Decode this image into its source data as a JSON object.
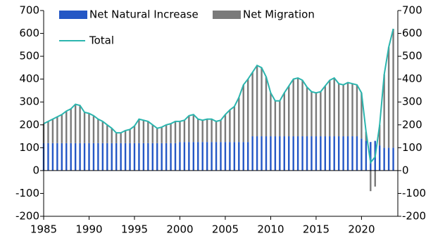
{
  "chart_data": {
    "type": "bar",
    "stacked": true,
    "x": [
      1985,
      1985.5,
      1986,
      1986.5,
      1987,
      1987.5,
      1988,
      1988.5,
      1989,
      1989.5,
      1990,
      1990.5,
      1991,
      1991.5,
      1992,
      1992.5,
      1993,
      1993.5,
      1994,
      1994.5,
      1995,
      1995.5,
      1996,
      1996.5,
      1997,
      1997.5,
      1998,
      1998.5,
      1999,
      1999.5,
      2000,
      2000.5,
      2001,
      2001.5,
      2002,
      2002.5,
      2003,
      2003.5,
      2004,
      2004.5,
      2005,
      2005.5,
      2006,
      2006.5,
      2007,
      2007.5,
      2008,
      2008.5,
      2009,
      2009.5,
      2010,
      2010.5,
      2011,
      2011.5,
      2012,
      2012.5,
      2013,
      2013.5,
      2014,
      2014.5,
      2015,
      2015.5,
      2016,
      2016.5,
      2017,
      2017.5,
      2018,
      2018.5,
      2019,
      2019.5,
      2020,
      2020.5,
      2021,
      2021.5,
      2022,
      2022.5,
      2023,
      2023.5
    ],
    "series": [
      {
        "name": "Net Natural Increase",
        "color": "#2457c5",
        "values": [
          120,
          120,
          120,
          120,
          120,
          120,
          120,
          120,
          120,
          120,
          120,
          120,
          120,
          120,
          120,
          120,
          120,
          120,
          120,
          120,
          120,
          120,
          120,
          120,
          120,
          120,
          120,
          120,
          120,
          120,
          125,
          125,
          125,
          125,
          125,
          125,
          125,
          125,
          125,
          125,
          125,
          125,
          125,
          125,
          125,
          125,
          150,
          150,
          150,
          150,
          150,
          150,
          150,
          150,
          150,
          150,
          150,
          150,
          150,
          150,
          150,
          150,
          150,
          150,
          150,
          150,
          150,
          150,
          150,
          150,
          140,
          130,
          125,
          130,
          110,
          100,
          100,
          100
        ]
      },
      {
        "name": "Net Migration",
        "color": "#7a7a7a",
        "values": [
          85,
          95,
          105,
          115,
          125,
          140,
          150,
          170,
          165,
          135,
          130,
          120,
          105,
          95,
          80,
          65,
          45,
          45,
          55,
          60,
          75,
          105,
          100,
          95,
          80,
          65,
          70,
          80,
          85,
          95,
          90,
          95,
          115,
          120,
          100,
          95,
          100,
          100,
          90,
          95,
          120,
          140,
          155,
          195,
          250,
          275,
          280,
          310,
          300,
          260,
          190,
          155,
          155,
          190,
          220,
          250,
          255,
          245,
          215,
          195,
          190,
          195,
          220,
          245,
          255,
          230,
          225,
          235,
          230,
          225,
          200,
          40,
          -90,
          -70,
          90,
          320,
          440,
          520
        ]
      },
      {
        "name": "Total",
        "type": "line",
        "color": "#2bb5ae",
        "values": [
          205,
          215,
          225,
          235,
          245,
          260,
          270,
          290,
          285,
          255,
          250,
          240,
          225,
          215,
          200,
          185,
          165,
          165,
          175,
          180,
          195,
          225,
          220,
          215,
          200,
          185,
          190,
          200,
          205,
          215,
          215,
          220,
          240,
          245,
          225,
          220,
          225,
          225,
          215,
          220,
          245,
          265,
          280,
          320,
          375,
          400,
          430,
          460,
          450,
          410,
          340,
          305,
          305,
          340,
          370,
          400,
          405,
          395,
          365,
          345,
          340,
          345,
          370,
          395,
          405,
          380,
          375,
          385,
          380,
          375,
          340,
          170,
          35,
          60,
          200,
          420,
          540,
          620
        ]
      }
    ],
    "xlim": [
      1985,
      2024
    ],
    "xticks": [
      1985,
      1990,
      1995,
      2000,
      2005,
      2010,
      2015,
      2020
    ],
    "ylim": [
      -200,
      700
    ],
    "yticks": [
      -200,
      -100,
      0,
      100,
      200,
      300,
      400,
      500,
      600,
      700
    ],
    "y2lim": [
      -200,
      700
    ],
    "y2ticks": [
      -200,
      -100,
      0,
      100,
      200,
      300,
      400,
      500,
      600,
      700
    ],
    "legend": "top-left"
  }
}
